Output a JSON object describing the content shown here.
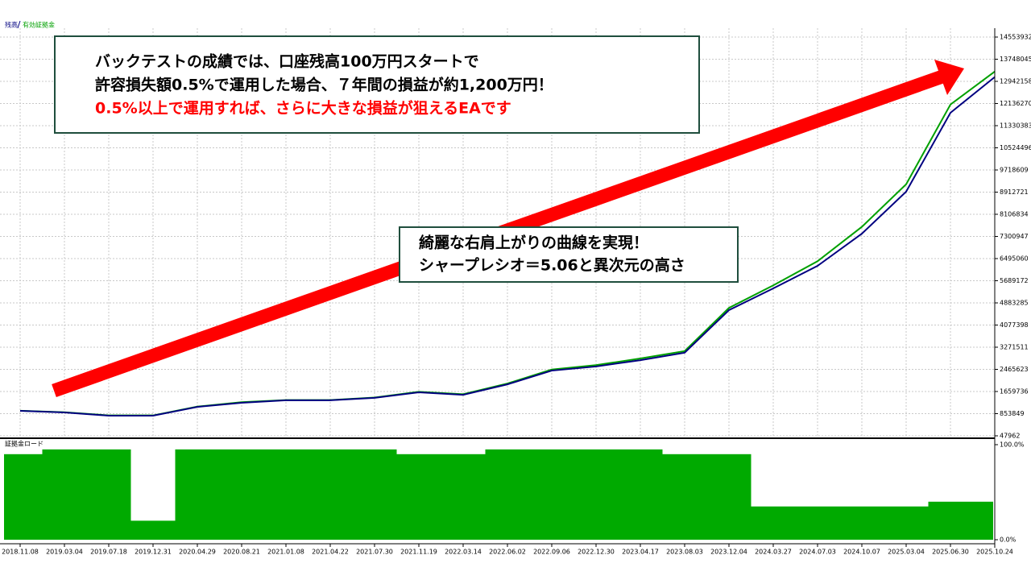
{
  "chart_data": [
    {
      "type": "line",
      "categories": [
        "2018.11.08",
        "2019.03.04",
        "2019.07.18",
        "2019.12.31",
        "2020.04.29",
        "2020.08.21",
        "2021.01.08",
        "2021.04.22",
        "2021.07.30",
        "2021.11.19",
        "2022.03.14",
        "2022.06.02",
        "2022.09.06",
        "2022.12.30",
        "2023.04.17",
        "2023.08.03",
        "2023.12.04",
        "2024.03.27",
        "2024.07.03",
        "2024.10.07",
        "2025.03.04",
        "2025.06.30",
        "2025.10.24"
      ],
      "series": [
        {
          "name": "残高",
          "color": "#000080",
          "values": [
            956000,
            898000,
            780000,
            780000,
            1100000,
            1250000,
            1340000,
            1340000,
            1430000,
            1630000,
            1540000,
            1920000,
            2420000,
            2570000,
            2800000,
            3070000,
            4620000,
            5410000,
            6230000,
            7400000,
            8930000,
            11800000,
            13100000
          ]
        },
        {
          "name": "有効証拠金",
          "color": "#00a000",
          "values": [
            960000,
            905000,
            790000,
            790000,
            1110000,
            1270000,
            1350000,
            1350000,
            1440000,
            1650000,
            1560000,
            1950000,
            2460000,
            2620000,
            2860000,
            3130000,
            4700000,
            5520000,
            6400000,
            7650000,
            9200000,
            12100000,
            13300000
          ]
        }
      ],
      "ylim": [
        47962,
        14553932
      ],
      "yticks": [
        47962,
        853849,
        1659736,
        2465623,
        3271511,
        4077398,
        4883285,
        5689172,
        6495060,
        7300947,
        8106834,
        8912721,
        9718609,
        10524496,
        11330383,
        12136270,
        12942158,
        13748045,
        14553932
      ],
      "grid": true,
      "annotations": [
        {
          "lines": [
            {
              "text": "バックテストの成績では、口座残高100万円スタートで",
              "color": "#000000"
            },
            {
              "text": "許容損失額0.5%で運用した場合、７年間の損益が約1,200万円！",
              "color": "#000000"
            },
            {
              "text": "0.5%以上で運用すれば、さらに大きな損益が狙えるEAです",
              "color": "#ff0000"
            }
          ]
        },
        {
          "lines": [
            {
              "text": "綺麗な右肩上がりの曲線を実現！",
              "color": "#000000"
            },
            {
              "text": "シャープレシオ＝5.06と異次元の高さ",
              "color": "#000000"
            }
          ]
        }
      ]
    },
    {
      "type": "bar",
      "title": "証拠金ロード",
      "color": "#00aa00",
      "values": [
        90,
        95,
        95,
        20,
        95,
        95,
        95,
        95,
        95,
        90,
        90,
        95,
        95,
        95,
        95,
        90,
        90,
        35,
        35,
        35,
        35,
        40,
        40
      ],
      "ylim": [
        0,
        100
      ],
      "yticks": [
        {
          "value": 0,
          "label": "0.0%"
        },
        {
          "value": 100,
          "label": "100.0%"
        }
      ]
    }
  ]
}
